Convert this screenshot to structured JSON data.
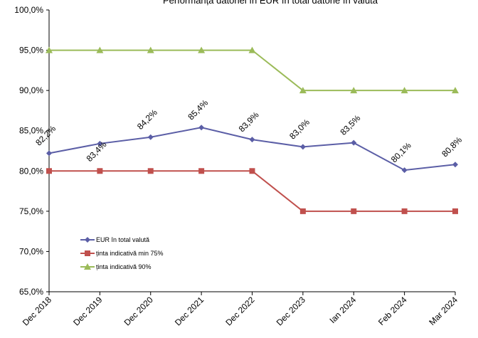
{
  "chart_data": {
    "type": "line",
    "title": "Performanța datoriei în EUR în total datorie în valută",
    "categories": [
      "Dec 2018",
      "Dec 2019",
      "Dec 2020",
      "Dec 2021",
      "Dec 2022",
      "Dec 2023",
      "Ian 2024",
      "Feb 2024",
      "Mar 2024"
    ],
    "series": [
      {
        "name": "EUR în total valută",
        "color": "#5b5ea6",
        "marker": "diamond",
        "values": [
          82.2,
          83.4,
          84.2,
          85.4,
          83.9,
          83.0,
          83.5,
          80.1,
          80.8
        ],
        "value_labels": [
          "82,2%",
          "83,4%",
          "84,2%",
          "85,4%",
          "83,9%",
          "83,0%",
          "83,5%",
          "80,1%",
          "80,8%"
        ]
      },
      {
        "name": "ținta indicativă min 75%",
        "color": "#c0504d",
        "marker": "square",
        "values": [
          80,
          80,
          80,
          80,
          80,
          75,
          75,
          75,
          75
        ]
      },
      {
        "name": "ținta indicativă  90%",
        "color": "#9bbb59",
        "marker": "triangle",
        "values": [
          95,
          95,
          95,
          95,
          95,
          90,
          90,
          90,
          90
        ]
      }
    ],
    "ylim": [
      65,
      100
    ],
    "yticks": [
      {
        "value": 65,
        "label": "65,0%"
      },
      {
        "value": 70,
        "label": "70,0%"
      },
      {
        "value": 75,
        "label": "75,0%"
      },
      {
        "value": 80,
        "label": "80,0%"
      },
      {
        "value": 85,
        "label": "85,0%"
      },
      {
        "value": 90,
        "label": "90,0%"
      },
      {
        "value": 95,
        "label": "95,0%"
      },
      {
        "value": 100,
        "label": "100,0%"
      }
    ],
    "grid": false,
    "legend": "lower left"
  }
}
